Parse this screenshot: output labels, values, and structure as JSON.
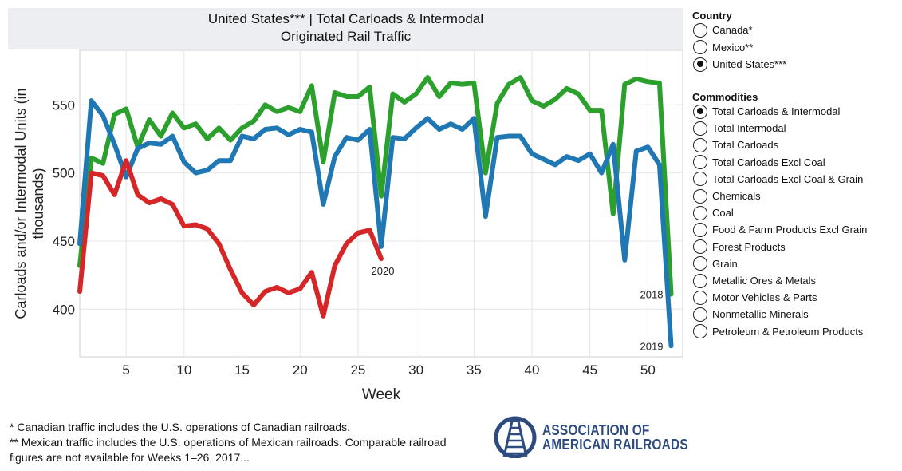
{
  "title": {
    "line1": "United States*** | Total Carloads & Intermodal",
    "line2": "Originated Rail Traffic"
  },
  "chart_data": {
    "type": "line",
    "title": "United States*** | Total Carloads & Intermodal Originated Rail Traffic",
    "xlabel": "Week",
    "ylabel": "Carloads and/or Intermodal Units (in thousands)",
    "ylabel_lines": [
      "Carloads and/or Intermodal Units (in",
      "thousands)"
    ],
    "xlim": [
      1,
      53
    ],
    "ylim": [
      365,
      590
    ],
    "xticks": [
      5,
      10,
      15,
      20,
      25,
      30,
      35,
      40,
      45,
      50
    ],
    "yticks": [
      400,
      450,
      500,
      550
    ],
    "series": [
      {
        "name": "2018",
        "color": "#2ca02c",
        "x": [
          1,
          2,
          3,
          4,
          5,
          6,
          7,
          8,
          9,
          10,
          11,
          12,
          13,
          14,
          15,
          16,
          17,
          18,
          19,
          20,
          21,
          22,
          23,
          24,
          25,
          26,
          27,
          28,
          29,
          30,
          31,
          32,
          33,
          34,
          35,
          36,
          37,
          38,
          39,
          40,
          41,
          42,
          43,
          44,
          45,
          46,
          47,
          48,
          49,
          50,
          51,
          52
        ],
        "values": [
          432,
          511,
          507,
          543,
          547,
          519,
          539,
          527,
          544,
          533,
          536,
          525,
          533,
          524,
          533,
          538,
          550,
          545,
          548,
          545,
          564,
          508,
          559,
          556,
          556,
          563,
          483,
          558,
          552,
          558,
          570,
          556,
          566,
          565,
          566,
          500,
          551,
          565,
          570,
          553,
          549,
          554,
          562,
          558,
          546,
          546,
          470,
          565,
          569,
          567,
          566,
          411
        ]
      },
      {
        "name": "2019",
        "color": "#1f77b4",
        "x": [
          1,
          2,
          3,
          4,
          5,
          6,
          7,
          8,
          9,
          10,
          11,
          12,
          13,
          14,
          15,
          16,
          17,
          18,
          19,
          20,
          21,
          22,
          23,
          24,
          25,
          26,
          27,
          28,
          29,
          30,
          31,
          32,
          33,
          34,
          35,
          36,
          37,
          38,
          39,
          40,
          41,
          42,
          43,
          44,
          45,
          46,
          47,
          48,
          49,
          50,
          51,
          52
        ],
        "values": [
          448,
          553,
          542,
          521,
          497,
          518,
          522,
          521,
          527,
          508,
          500,
          502,
          509,
          509,
          527,
          525,
          532,
          533,
          528,
          532,
          530,
          477,
          512,
          526,
          524,
          532,
          446,
          526,
          525,
          533,
          540,
          532,
          536,
          532,
          540,
          468,
          526,
          527,
          527,
          514,
          510,
          506,
          512,
          509,
          514,
          500,
          521,
          436,
          516,
          519,
          506,
          373
        ]
      },
      {
        "name": "2020",
        "color": "#d62728",
        "x": [
          1,
          2,
          3,
          4,
          5,
          6,
          7,
          8,
          9,
          10,
          11,
          12,
          13,
          14,
          15,
          16,
          17,
          18,
          19,
          20,
          21,
          22,
          23,
          24,
          25,
          26,
          27
        ],
        "values": [
          413,
          500,
          498,
          484,
          509,
          484,
          478,
          481,
          477,
          461,
          462,
          459,
          448,
          429,
          412,
          403,
          413,
          416,
          412,
          415,
          427,
          395,
          432,
          448,
          456,
          458,
          437
        ]
      }
    ],
    "annotations": [
      {
        "text": "2020",
        "x": 27,
        "y": 437
      },
      {
        "text": "2018",
        "x": 52,
        "y": 411
      },
      {
        "text": "2019",
        "x": 52,
        "y": 373
      }
    ]
  },
  "country": {
    "title": "Country",
    "options": [
      {
        "label": "Canada*",
        "checked": false
      },
      {
        "label": "Mexico**",
        "checked": false
      },
      {
        "label": "United States***",
        "checked": true
      }
    ]
  },
  "commodities": {
    "title": "Commodities",
    "options": [
      {
        "label": "Total Carloads & Intermodal",
        "checked": true
      },
      {
        "label": "Total Intermodal",
        "checked": false
      },
      {
        "label": "Total Carloads",
        "checked": false
      },
      {
        "label": "Total Carloads Excl Coal",
        "checked": false
      },
      {
        "label": "Total Carloads Excl Coal & Grain",
        "checked": false
      },
      {
        "label": "Chemicals",
        "checked": false
      },
      {
        "label": "Coal",
        "checked": false
      },
      {
        "label": "Food & Farm Products Excl Grain",
        "checked": false
      },
      {
        "label": "Forest Products",
        "checked": false
      },
      {
        "label": "Grain",
        "checked": false
      },
      {
        "label": "Metallic Ores & Metals",
        "checked": false
      },
      {
        "label": "Motor Vehicles & Parts",
        "checked": false
      },
      {
        "label": "Nonmetallic Minerals",
        "checked": false
      },
      {
        "label": "Petroleum & Petroleum Products",
        "checked": false
      }
    ]
  },
  "footnotes": {
    "line1": "* Canadian traffic includes the U.S. operations of Canadian railroads.",
    "line2": "** Mexican traffic includes the U.S. operations of Mexican railroads. Comparable railroad",
    "line3": "figures are not available for Weeks 1–26, 2017..."
  },
  "logo": {
    "line1": "ASSOCIATION OF",
    "line2": "AMERICAN RAILROADS",
    "color": "#2d4b7e"
  }
}
